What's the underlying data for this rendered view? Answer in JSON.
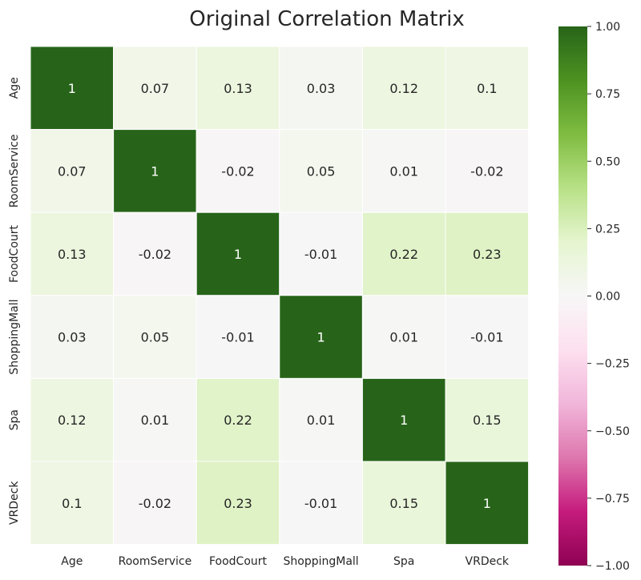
{
  "chart_data": {
    "type": "heatmap",
    "title": "Original Correlation Matrix",
    "xlabel": "",
    "ylabel": "",
    "x_categories": [
      "Age",
      "RoomService",
      "FoodCourt",
      "ShoppingMall",
      "Spa",
      "VRDeck"
    ],
    "y_categories": [
      "Age",
      "RoomService",
      "FoodCourt",
      "ShoppingMall",
      "Spa",
      "VRDeck"
    ],
    "values": [
      [
        1,
        0.07,
        0.13,
        0.03,
        0.12,
        0.1
      ],
      [
        0.07,
        1,
        -0.02,
        0.05,
        0.01,
        -0.02
      ],
      [
        0.13,
        -0.02,
        1,
        -0.01,
        0.22,
        0.23
      ],
      [
        0.03,
        0.05,
        -0.01,
        1,
        0.01,
        -0.01
      ],
      [
        0.12,
        0.01,
        0.22,
        0.01,
        1,
        0.15
      ],
      [
        0.1,
        -0.02,
        0.23,
        -0.01,
        0.15,
        1
      ]
    ],
    "value_labels": [
      [
        "1",
        "0.07",
        "0.13",
        "0.03",
        "0.12",
        "0.1"
      ],
      [
        "0.07",
        "1",
        "-0.02",
        "0.05",
        "0.01",
        "-0.02"
      ],
      [
        "0.13",
        "-0.02",
        "1",
        "-0.01",
        "0.22",
        "0.23"
      ],
      [
        "0.03",
        "0.05",
        "-0.01",
        "1",
        "0.01",
        "-0.01"
      ],
      [
        "0.12",
        "0.01",
        "0.22",
        "0.01",
        "1",
        "0.15"
      ],
      [
        "0.1",
        "-0.02",
        "0.23",
        "-0.01",
        "0.15",
        "1"
      ]
    ],
    "vmin": -1,
    "vmax": 1,
    "colormap": "PiYG",
    "colorbar_ticks": [
      1,
      0.75,
      0.5,
      0.25,
      0,
      -0.25,
      -0.5,
      -0.75,
      -1
    ],
    "colorbar_tick_labels": [
      "1.00",
      "0.75",
      "0.50",
      "0.25",
      "0.00",
      "−0.25",
      "−0.50",
      "−0.75",
      "−1.00"
    ],
    "colorbar_placement": "right",
    "annotated": true,
    "grid_lines_color": "#ffffff"
  }
}
